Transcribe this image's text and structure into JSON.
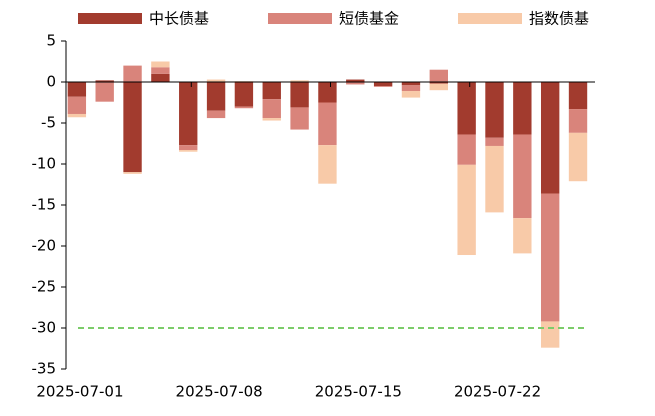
{
  "chart_data": {
    "type": "stacked_bar",
    "categories": [
      "2025-07-01",
      null,
      null,
      null,
      null,
      "2025-07-08",
      null,
      null,
      null,
      null,
      "2025-07-15",
      null,
      null,
      null,
      null,
      "2025-07-22",
      null,
      null,
      null
    ],
    "series": [
      {
        "name": "中长债基",
        "color": "#a23b2e",
        "values": [
          -1.8,
          0.2,
          -11.0,
          1.0,
          -7.7,
          -3.5,
          -3.0,
          -2.1,
          -3.1,
          -2.5,
          0.3,
          -0.5,
          -0.4,
          -0.2,
          -6.4,
          -6.8,
          -6.4,
          -13.6,
          -3.3
        ]
      },
      {
        "name": "短债基金",
        "color": "#d9847b",
        "values": [
          -2.1,
          -2.4,
          2.0,
          0.8,
          -0.6,
          -0.9,
          -0.2,
          -2.3,
          -2.7,
          -5.2,
          -0.3,
          -0.1,
          -0.7,
          1.5,
          -3.7,
          -1.0,
          -10.2,
          -15.6,
          -2.9
        ]
      },
      {
        "name": "指数债基",
        "color": "#f8caa8",
        "values": [
          -0.4,
          0,
          -0.2,
          0.7,
          -0.2,
          0.3,
          0.1,
          -0.3,
          0.2,
          -4.7,
          0,
          0,
          -0.8,
          -0.8,
          -11.0,
          -8.1,
          -4.3,
          -3.2,
          -5.9
        ]
      }
    ],
    "reference_line": {
      "value": -30,
      "color": "#7ccc6a"
    },
    "ylim": [
      -35,
      5
    ],
    "yticks": [
      5,
      0,
      -5,
      -10,
      -15,
      -20,
      -25,
      -30,
      -35
    ]
  }
}
